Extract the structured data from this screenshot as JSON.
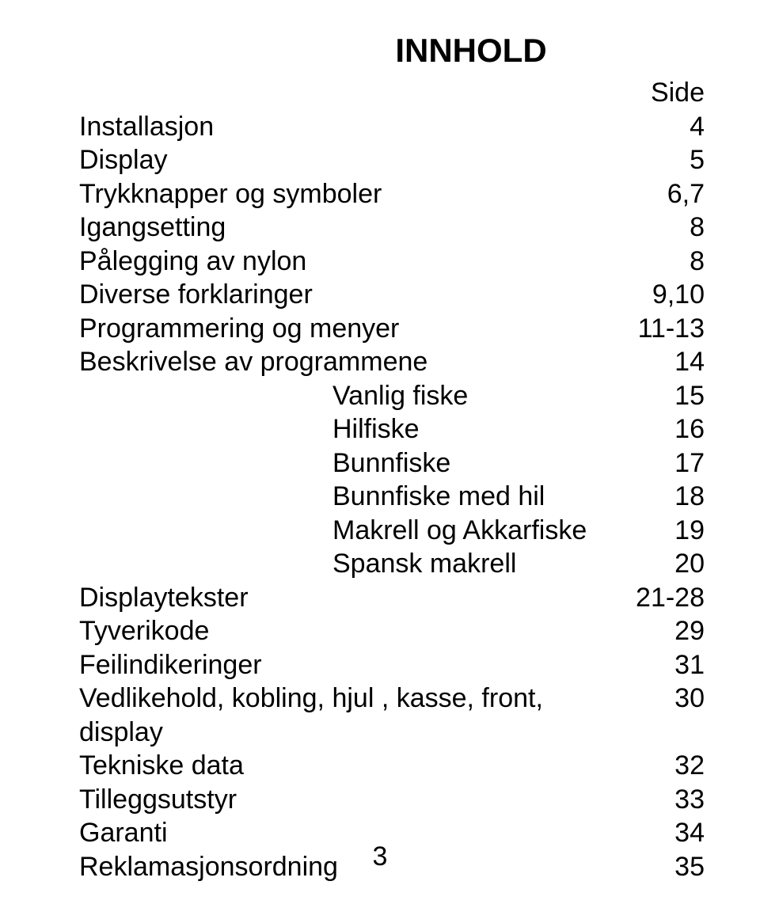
{
  "title": "INNHOLD",
  "side_label": "Side",
  "entries": [
    {
      "label": "Installasjon",
      "page": "4",
      "indent": false
    },
    {
      "label": "Display",
      "page": "5",
      "indent": false
    },
    {
      "label": "Trykknapper og symboler",
      "page": "6,7",
      "indent": false
    },
    {
      "label": "Igangsetting",
      "page": "8",
      "indent": false
    },
    {
      "label": "Pålegging av nylon",
      "page": "8",
      "indent": false
    },
    {
      "label": "Diverse forklaringer",
      "page": "9,10",
      "indent": false
    },
    {
      "label": "Programmering og menyer",
      "page": "11-13",
      "indent": false
    },
    {
      "label": "Beskrivelse av programmene",
      "page": "14",
      "indent": false
    },
    {
      "label": "Vanlig fiske",
      "page": "15",
      "indent": true
    },
    {
      "label": "Hilfiske",
      "page": "16",
      "indent": true
    },
    {
      "label": "Bunnfiske",
      "page": "17",
      "indent": true
    },
    {
      "label": "Bunnfiske med hil",
      "page": "18",
      "indent": true
    },
    {
      "label": "Makrell og Akkarfiske",
      "page": "19",
      "indent": true
    },
    {
      "label": "Spansk makrell",
      "page": "20",
      "indent": true
    },
    {
      "label": "Displaytekster",
      "page": "21-28",
      "indent": false
    },
    {
      "label": "Tyverikode",
      "page": "29",
      "indent": false
    },
    {
      "label": "Feilindikeringer",
      "page": "31",
      "indent": false
    },
    {
      "label": "Vedlikehold, kobling, hjul , kasse, front, display",
      "page": "30",
      "indent": false
    },
    {
      "label": "Tekniske data",
      "page": "32",
      "indent": false
    },
    {
      "label": "Tilleggsutstyr",
      "page": "33",
      "indent": false
    },
    {
      "label": "Garanti",
      "page": "34",
      "indent": false
    },
    {
      "label": "Reklamasjonsordning",
      "page": "35",
      "indent": false
    }
  ],
  "page_number": "3",
  "colors": {
    "background": "#ffffff",
    "text": "#000000"
  },
  "typography": {
    "title_fontsize": 42,
    "body_fontsize": 34,
    "font_family": "Arial"
  }
}
